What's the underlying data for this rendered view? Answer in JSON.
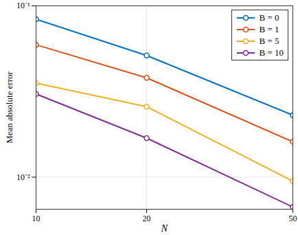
{
  "chart_data": {
    "type": "line",
    "x_label": "N",
    "y_label": "Mean absolute error",
    "x": [
      10,
      20,
      50
    ],
    "series": [
      {
        "name": "B = 0",
        "color": "#0072BD",
        "marker": "circle",
        "values": [
          0.0835,
          0.0513,
          0.023
        ]
      },
      {
        "name": "B = 1",
        "color": "#D95319",
        "marker": "circle",
        "values": [
          0.0593,
          0.038,
          0.0161
        ]
      },
      {
        "name": "B = 5",
        "color": "#EDB120",
        "marker": "circle",
        "values": [
          0.0354,
          0.0258,
          0.00947
        ]
      },
      {
        "name": "B = 10",
        "color": "#7E2F8E",
        "marker": "circle",
        "values": [
          0.0306,
          0.0169,
          0.0067
        ]
      }
    ],
    "xlim": [
      10,
      50
    ],
    "xticks": [
      10,
      20,
      50
    ],
    "ylim": [
      0.0065,
      0.1
    ],
    "yticks": [
      {
        "value": 0.01,
        "label": "10⁻²"
      },
      {
        "value": 0.1,
        "label": "10⁻¹"
      }
    ],
    "log": true,
    "grid": true,
    "legend": "top-right"
  }
}
